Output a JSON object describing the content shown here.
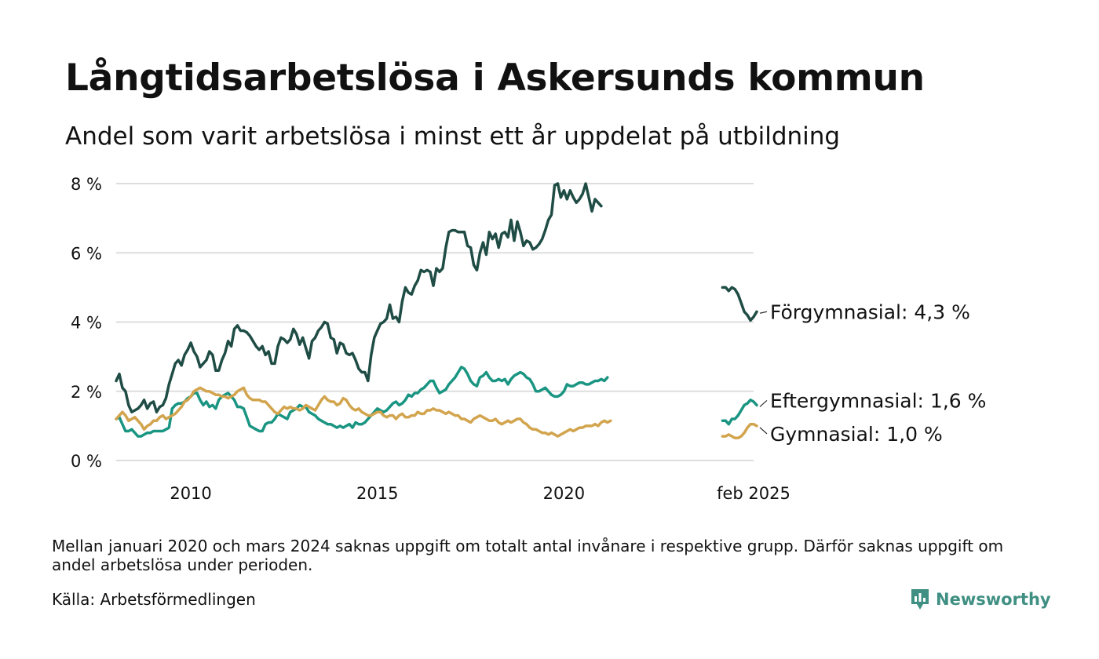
{
  "header": {
    "title": "Långtidsarbetslösa i Askersunds kommun",
    "subtitle": "Andel som varit arbetslösa i minst ett år uppdelat på utbildning"
  },
  "footer": {
    "note": "Mellan januari 2020 och mars 2024 saknas uppgift om totalt antal invånare i respektive grupp. Därför saknas uppgift om andel arbetslösa under perioden.",
    "source": "Källa: Arbetsförmedlingen",
    "brand": "Newsworthy"
  },
  "colors": {
    "forgymnasial": "#1f4d45",
    "eftergymnasial": "#1a9582",
    "gymnasial": "#d2a44d",
    "grid": "#dddddd",
    "brand": "#3f8f82"
  },
  "chart_data": {
    "type": "line",
    "title": "Långtidsarbetslösa i Askersunds kommun",
    "subtitle": "Andel som varit arbetslösa i minst ett år uppdelat på utbildning",
    "ylim": [
      0,
      8
    ],
    "yticks": [
      0,
      2,
      4,
      6,
      8
    ],
    "yticklabels": [
      "0 %",
      "2 %",
      "4 %",
      "6 %",
      "8 %"
    ],
    "xlim": [
      "2008-01",
      "2025-02"
    ],
    "xticks": [
      "2010-01",
      "2015-01",
      "2020-01",
      "2025-02"
    ],
    "xticklabels": [
      "2010",
      "2015",
      "2020",
      "feb 2025"
    ],
    "grid": true,
    "legend": "direct labels at line ends, right",
    "series": [
      {
        "name": "Förgymnasial",
        "end_label": "Förgymnasial: 4,3 %",
        "color": "#1f4d45",
        "segments": [
          {
            "start": "2008-01",
            "values": [
              2.3,
              2.5,
              2.1,
              2.0,
              1.6,
              1.4,
              1.45,
              1.5,
              1.6,
              1.75,
              1.5,
              1.65,
              1.7,
              1.4,
              1.55,
              1.6,
              1.8,
              2.2,
              2.5,
              2.8,
              2.9,
              2.75,
              3.05,
              3.2,
              3.4,
              3.15,
              3.0,
              2.7,
              2.8,
              2.9,
              3.15,
              3.05,
              2.6,
              2.6,
              2.9,
              3.1,
              3.45,
              3.3,
              3.8,
              3.9,
              3.75,
              3.75,
              3.7,
              3.6,
              3.45,
              3.3,
              3.2,
              3.3,
              3.05,
              3.15,
              2.8,
              2.8,
              3.3,
              3.55,
              3.5,
              3.4,
              3.5,
              3.8,
              3.65,
              3.35,
              3.55,
              3.25,
              2.95,
              3.45,
              3.55,
              3.75,
              3.85,
              4.0,
              3.95,
              3.55,
              3.5,
              3.1,
              3.4,
              3.35,
              3.1,
              3.05,
              3.1,
              2.9,
              2.65,
              2.55,
              2.55,
              2.3,
              3.05,
              3.55,
              3.75,
              3.95,
              4.0,
              4.1,
              4.5,
              4.1,
              4.15,
              4.0,
              4.6,
              5.0,
              4.85,
              4.8,
              5.05,
              5.2,
              5.5,
              5.45,
              5.5,
              5.45,
              5.05,
              5.55,
              5.45,
              5.55,
              6.15,
              6.6,
              6.65,
              6.65,
              6.6,
              6.6,
              6.6,
              6.2,
              6.15,
              5.65,
              5.5,
              6.0,
              6.3,
              5.95,
              6.6,
              6.4,
              6.55,
              6.15,
              6.55,
              6.6,
              6.45,
              6.95,
              6.35,
              6.9,
              6.6,
              6.2,
              6.35,
              6.3,
              6.1,
              6.15,
              6.25,
              6.4,
              6.65,
              6.95,
              7.1,
              7.95,
              8.0,
              7.6,
              7.8,
              7.55,
              7.8,
              7.6,
              7.45,
              7.55,
              7.7,
              8.0,
              7.6,
              7.2,
              7.55,
              7.45,
              7.35
            ]
          },
          {
            "start": "2024-04",
            "values": [
              5.0,
              5.0,
              4.9,
              5.0,
              4.95,
              4.8,
              4.55,
              4.3,
              4.2,
              4.05,
              4.15,
              4.3
            ]
          }
        ]
      },
      {
        "name": "Eftergymnasial",
        "end_label": "Eftergymnasial: 1,6 %",
        "color": "#1a9582",
        "segments": [
          {
            "start": "2008-01",
            "values": [
              1.2,
              1.25,
              1.05,
              0.85,
              0.85,
              0.9,
              0.8,
              0.7,
              0.7,
              0.75,
              0.8,
              0.8,
              0.85,
              0.85,
              0.85,
              0.85,
              0.9,
              0.95,
              1.5,
              1.6,
              1.65,
              1.65,
              1.7,
              1.8,
              1.85,
              1.95,
              1.95,
              1.75,
              1.6,
              1.7,
              1.55,
              1.6,
              1.5,
              1.75,
              1.85,
              1.9,
              1.95,
              1.85,
              1.75,
              1.55,
              1.55,
              1.5,
              1.25,
              1.0,
              0.95,
              0.9,
              0.85,
              0.85,
              1.05,
              1.1,
              1.1,
              1.2,
              1.35,
              1.3,
              1.25,
              1.2,
              1.4,
              1.45,
              1.5,
              1.6,
              1.55,
              1.55,
              1.4,
              1.35,
              1.3,
              1.2,
              1.15,
              1.1,
              1.05,
              1.05,
              1.0,
              0.95,
              1.0,
              0.95,
              1.0,
              1.05,
              0.95,
              1.1,
              1.05,
              1.05,
              1.1,
              1.2,
              1.3,
              1.4,
              1.5,
              1.45,
              1.4,
              1.45,
              1.55,
              1.65,
              1.7,
              1.6,
              1.65,
              1.75,
              1.9,
              1.85,
              1.95,
              1.95,
              2.05,
              2.1,
              2.2,
              2.3,
              2.3,
              2.1,
              1.95,
              2.0,
              2.05,
              2.2,
              2.3,
              2.4,
              2.55,
              2.7,
              2.65,
              2.5,
              2.3,
              2.2,
              2.15,
              2.4,
              2.45,
              2.55,
              2.4,
              2.3,
              2.3,
              2.35,
              2.3,
              2.35,
              2.2,
              2.35,
              2.45,
              2.5,
              2.55,
              2.5,
              2.4,
              2.35,
              2.2,
              2.0,
              2.0,
              2.05,
              2.1,
              2.0,
              1.9,
              1.85,
              1.85,
              1.9,
              2.0,
              2.2,
              2.15,
              2.15,
              2.2,
              2.25,
              2.25,
              2.2,
              2.2,
              2.25,
              2.3,
              2.3,
              2.35,
              2.3,
              2.4
            ]
          },
          {
            "start": "2024-04",
            "values": [
              1.15,
              1.15,
              1.05,
              1.2,
              1.2,
              1.3,
              1.45,
              1.6,
              1.65,
              1.75,
              1.7,
              1.6
            ]
          }
        ]
      },
      {
        "name": "Gymnasial",
        "end_label": "Gymnasial: 1,0 %",
        "color": "#d2a44d",
        "segments": [
          {
            "start": "2008-01",
            "values": [
              1.2,
              1.3,
              1.4,
              1.3,
              1.15,
              1.2,
              1.25,
              1.15,
              1.05,
              0.9,
              1.0,
              1.05,
              1.15,
              1.15,
              1.25,
              1.3,
              1.2,
              1.25,
              1.3,
              1.35,
              1.45,
              1.55,
              1.7,
              1.75,
              1.85,
              2.0,
              2.05,
              2.1,
              2.05,
              2.0,
              2.0,
              1.95,
              1.9,
              1.9,
              1.85,
              1.85,
              1.8,
              1.85,
              1.9,
              2.0,
              2.05,
              2.1,
              1.9,
              1.8,
              1.75,
              1.75,
              1.75,
              1.7,
              1.7,
              1.6,
              1.5,
              1.4,
              1.35,
              1.45,
              1.55,
              1.5,
              1.55,
              1.5,
              1.5,
              1.45,
              1.5,
              1.6,
              1.55,
              1.5,
              1.45,
              1.6,
              1.75,
              1.85,
              1.75,
              1.7,
              1.7,
              1.6,
              1.65,
              1.8,
              1.75,
              1.6,
              1.5,
              1.45,
              1.5,
              1.4,
              1.35,
              1.3,
              1.3,
              1.35,
              1.4,
              1.4,
              1.3,
              1.25,
              1.3,
              1.3,
              1.2,
              1.3,
              1.35,
              1.25,
              1.25,
              1.3,
              1.3,
              1.4,
              1.35,
              1.35,
              1.45,
              1.45,
              1.5,
              1.45,
              1.45,
              1.4,
              1.35,
              1.4,
              1.35,
              1.3,
              1.3,
              1.2,
              1.2,
              1.15,
              1.1,
              1.2,
              1.25,
              1.3,
              1.25,
              1.2,
              1.15,
              1.15,
              1.2,
              1.1,
              1.05,
              1.1,
              1.15,
              1.1,
              1.15,
              1.2,
              1.2,
              1.1,
              1.05,
              0.95,
              0.9,
              0.9,
              0.85,
              0.8,
              0.8,
              0.75,
              0.8,
              0.75,
              0.7,
              0.75,
              0.8,
              0.85,
              0.9,
              0.85,
              0.9,
              0.95,
              0.95,
              1.0,
              1.0,
              1.0,
              1.05,
              1.0,
              1.1,
              1.15,
              1.1,
              1.15
            ]
          },
          {
            "start": "2024-04",
            "values": [
              0.7,
              0.7,
              0.75,
              0.7,
              0.65,
              0.65,
              0.7,
              0.8,
              0.95,
              1.05,
              1.05,
              1.0
            ]
          }
        ]
      }
    ]
  }
}
